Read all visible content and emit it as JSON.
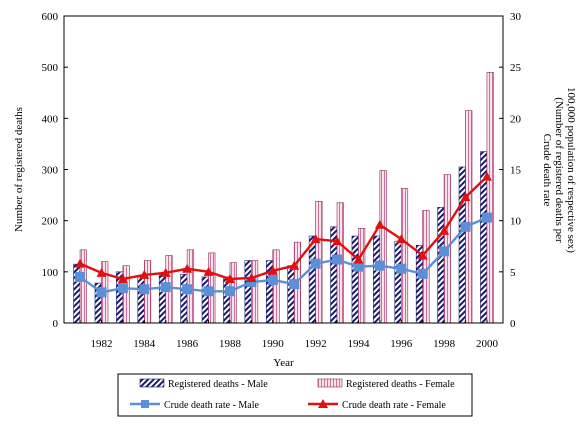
{
  "chart_data": {
    "type": "bar",
    "x": [
      1981,
      1982,
      1983,
      1984,
      1985,
      1986,
      1987,
      1988,
      1989,
      1990,
      1991,
      1992,
      1993,
      1994,
      1995,
      1996,
      1997,
      1998,
      1999,
      2000
    ],
    "x_tick_labels": [
      "1982",
      "1984",
      "1986",
      "1988",
      "1990",
      "1992",
      "1994",
      "1996",
      "1998",
      "2000"
    ],
    "x_tick_values": [
      1982,
      1984,
      1986,
      1988,
      1990,
      1992,
      1994,
      1996,
      1998,
      2000
    ],
    "xlabel": "Year",
    "ylabel": "Number of registered deaths",
    "y2label_line1": "Crude death rate",
    "y2label_line2": "(Number of registered deaths per",
    "y2label_line3": "100,000 population of respective sex)",
    "ylim": [
      0,
      600
    ],
    "y2lim": [
      0,
      30
    ],
    "y_ticks": [
      0,
      100,
      200,
      300,
      400,
      500,
      600
    ],
    "y2_ticks": [
      0,
      5,
      10,
      15,
      20,
      25,
      30
    ],
    "series": [
      {
        "name": "Registered deaths - Male",
        "kind": "bar",
        "axis": "left",
        "color": "#1a1a6e",
        "values": [
          115,
          78,
          100,
          90,
          95,
          95,
          90,
          90,
          122,
          122,
          112,
          170,
          188,
          170,
          170,
          160,
          152,
          226,
          305,
          335
        ]
      },
      {
        "name": "Registered deaths - Female",
        "kind": "bar",
        "axis": "left",
        "color": "#e8a6c4",
        "values": [
          143,
          120,
          112,
          122,
          132,
          143,
          137,
          118,
          122,
          143,
          158,
          238,
          235,
          185,
          298,
          263,
          220,
          290,
          415,
          490
        ]
      },
      {
        "name": "Crude death rate - Male",
        "kind": "line",
        "axis": "right",
        "color": "#5b8fd6",
        "marker": "square",
        "values": [
          4.5,
          3.0,
          3.4,
          3.3,
          3.5,
          3.3,
          3.1,
          3.1,
          4.0,
          4.2,
          3.8,
          5.8,
          6.2,
          5.5,
          5.6,
          5.3,
          4.8,
          7.0,
          9.4,
          10.3
        ]
      },
      {
        "name": "Crude death rate - Female",
        "kind": "line",
        "axis": "right",
        "color": "#e01010",
        "marker": "triangle",
        "values": [
          5.8,
          4.9,
          4.3,
          4.7,
          4.9,
          5.3,
          5.0,
          4.3,
          4.4,
          5.1,
          5.6,
          8.2,
          8.0,
          6.2,
          9.6,
          8.2,
          6.6,
          9.0,
          12.3,
          14.3
        ]
      }
    ],
    "legend_position": "bottom",
    "grid": false
  }
}
